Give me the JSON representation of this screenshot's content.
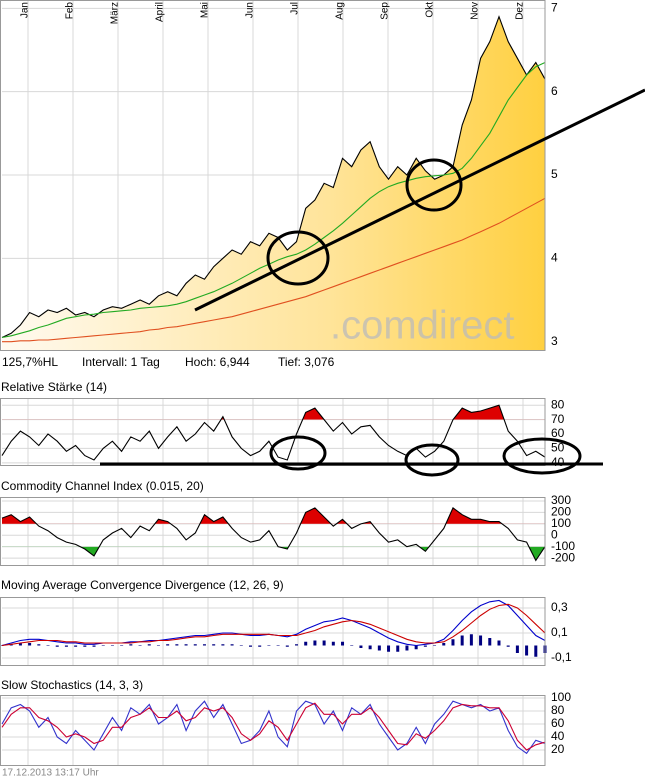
{
  "chart_data": [
    {
      "type": "line",
      "months": [
        "Jan",
        "Feb",
        "März",
        "April",
        "Mai",
        "Jun",
        "Jul",
        "Aug",
        "Sep",
        "Okt",
        "Nov",
        "Dez"
      ],
      "ylim": [
        2.9,
        7.1
      ],
      "yticks": [
        3,
        4,
        5,
        6,
        7
      ],
      "grid": true,
      "watermark": ".comdirect",
      "series": [
        {
          "style": "area",
          "color": "#000000",
          "values": [
            3.05,
            3.1,
            3.2,
            3.35,
            3.3,
            3.38,
            3.35,
            3.4,
            3.32,
            3.35,
            3.3,
            3.38,
            3.42,
            3.4,
            3.45,
            3.5,
            3.45,
            3.55,
            3.6,
            3.55,
            3.7,
            3.8,
            3.75,
            3.9,
            4.0,
            4.1,
            4.05,
            4.2,
            4.15,
            4.3,
            4.25,
            4.1,
            4.2,
            4.6,
            4.7,
            4.9,
            4.85,
            5.2,
            5.1,
            5.3,
            5.4,
            5.1,
            4.95,
            5.1,
            5.0,
            5.2,
            5.05,
            4.95,
            5.0,
            5.1,
            5.6,
            5.9,
            6.4,
            6.6,
            6.9,
            6.6,
            6.4,
            6.2,
            6.35,
            6.15
          ]
        },
        {
          "style": "line",
          "color": "#22aa22",
          "values": [
            3.05,
            3.07,
            3.1,
            3.13,
            3.17,
            3.2,
            3.24,
            3.28,
            3.3,
            3.32,
            3.33,
            3.35,
            3.36,
            3.37,
            3.38,
            3.4,
            3.41,
            3.42,
            3.43,
            3.45,
            3.48,
            3.52,
            3.56,
            3.6,
            3.65,
            3.7,
            3.76,
            3.82,
            3.88,
            3.93,
            3.98,
            4.02,
            4.05,
            4.1,
            4.17,
            4.25,
            4.33,
            4.42,
            4.52,
            4.62,
            4.72,
            4.8,
            4.86,
            4.9,
            4.93,
            4.96,
            4.98,
            4.99,
            5.0,
            5.02,
            5.08,
            5.2,
            5.35,
            5.5,
            5.7,
            5.9,
            6.05,
            6.2,
            6.3,
            6.35
          ]
        },
        {
          "style": "line",
          "color": "#e05020",
          "values": [
            3.0,
            3.0,
            3.01,
            3.01,
            3.02,
            3.02,
            3.03,
            3.04,
            3.05,
            3.06,
            3.07,
            3.08,
            3.09,
            3.1,
            3.11,
            3.12,
            3.14,
            3.15,
            3.17,
            3.18,
            3.2,
            3.22,
            3.24,
            3.26,
            3.28,
            3.3,
            3.33,
            3.36,
            3.39,
            3.42,
            3.45,
            3.48,
            3.51,
            3.54,
            3.58,
            3.62,
            3.66,
            3.7,
            3.74,
            3.78,
            3.82,
            3.86,
            3.9,
            3.94,
            3.98,
            4.02,
            4.06,
            4.1,
            4.14,
            4.18,
            4.22,
            4.27,
            4.32,
            4.37,
            4.42,
            4.48,
            4.54,
            4.6,
            4.66,
            4.72
          ]
        }
      ]
    },
    {
      "type": "line",
      "title": "Relative Stärke (14)",
      "ylim": [
        38.5,
        85
      ],
      "yticks": [
        40,
        50,
        60,
        70,
        80
      ],
      "grid": true,
      "fill_above": {
        "level": 70,
        "color": "#dd0000"
      },
      "series": [
        {
          "style": "line",
          "color": "#000000",
          "values": [
            45,
            55,
            62,
            58,
            52,
            60,
            55,
            48,
            52,
            45,
            42,
            50,
            55,
            48,
            58,
            55,
            62,
            50,
            58,
            65,
            55,
            60,
            68,
            62,
            72,
            58,
            50,
            45,
            48,
            55,
            44,
            42,
            60,
            75,
            78,
            70,
            62,
            68,
            60,
            65,
            66,
            58,
            52,
            48,
            45,
            50,
            44,
            48,
            55,
            70,
            78,
            75,
            76,
            78,
            80,
            62,
            55,
            45,
            48,
            44
          ]
        }
      ]
    },
    {
      "type": "line",
      "title": "Commodity Channel Index (0.015, 20)",
      "ylim": [
        -260,
        335
      ],
      "yticks": [
        -200,
        -100,
        0,
        100,
        200,
        300
      ],
      "grid": true,
      "fill_above": {
        "level": 100,
        "color": "#dd0000"
      },
      "fill_below": {
        "level": -100,
        "color": "#22aa22"
      },
      "series": [
        {
          "style": "line",
          "color": "#000000",
          "values": [
            150,
            180,
            120,
            160,
            80,
            40,
            -20,
            -60,
            -80,
            -120,
            -180,
            -40,
            20,
            60,
            -20,
            80,
            40,
            140,
            120,
            60,
            -40,
            20,
            180,
            120,
            160,
            60,
            -20,
            -60,
            -40,
            40,
            -100,
            -120,
            20,
            200,
            240,
            160,
            80,
            140,
            60,
            100,
            120,
            20,
            -60,
            -40,
            -100,
            -80,
            -140,
            -40,
            60,
            240,
            180,
            140,
            140,
            120,
            120,
            60,
            -40,
            -60,
            -220,
            -100
          ]
        }
      ]
    },
    {
      "type": "line",
      "title": "Moving Average Convergence Divergence (12, 26, 9)",
      "ylim": [
        -0.156,
        0.388
      ],
      "yticks": [
        {
          "value": -0.1,
          "label": "-0,1"
        },
        {
          "value": 0.1,
          "label": "0,1"
        },
        {
          "value": 0.3,
          "label": "0,3"
        }
      ],
      "grid": true,
      "series": [
        {
          "style": "bar",
          "color": "#000080",
          "values": [
            0,
            0.01,
            0.02,
            0.02,
            0.01,
            0,
            -0.01,
            -0.01,
            -0.01,
            -0.01,
            -0.01,
            0,
            0,
            0,
            0.01,
            0,
            0.01,
            0,
            0.01,
            0.01,
            0.01,
            0.01,
            0.01,
            0.01,
            0.01,
            0.01,
            0,
            -0.01,
            -0.01,
            0,
            0,
            -0.01,
            0.01,
            0.03,
            0.04,
            0.04,
            0.03,
            0.03,
            0,
            -0.02,
            -0.03,
            -0.04,
            -0.05,
            -0.05,
            -0.04,
            -0.03,
            -0.01,
            0,
            0.02,
            0.05,
            0.08,
            0.09,
            0.08,
            0.06,
            0.04,
            -0.01,
            -0.06,
            -0.08,
            -0.09,
            -0.06
          ]
        },
        {
          "style": "line",
          "color": "#0000cc",
          "values": [
            0.0,
            0.02,
            0.04,
            0.05,
            0.05,
            0.04,
            0.03,
            0.02,
            0.02,
            0.01,
            0.01,
            0.02,
            0.02,
            0.02,
            0.03,
            0.03,
            0.04,
            0.04,
            0.05,
            0.06,
            0.07,
            0.08,
            0.08,
            0.09,
            0.1,
            0.1,
            0.09,
            0.08,
            0.08,
            0.09,
            0.08,
            0.07,
            0.09,
            0.13,
            0.16,
            0.19,
            0.2,
            0.22,
            0.2,
            0.17,
            0.14,
            0.1,
            0.06,
            0.03,
            0.01,
            0.0,
            0.01,
            0.02,
            0.05,
            0.12,
            0.2,
            0.27,
            0.32,
            0.35,
            0.36,
            0.32,
            0.24,
            0.16,
            0.08,
            0.04
          ]
        },
        {
          "style": "line",
          "color": "#cc0000",
          "values": [
            0.0,
            0.01,
            0.02,
            0.03,
            0.04,
            0.04,
            0.04,
            0.03,
            0.03,
            0.02,
            0.02,
            0.02,
            0.02,
            0.02,
            0.02,
            0.03,
            0.03,
            0.04,
            0.04,
            0.05,
            0.06,
            0.07,
            0.07,
            0.08,
            0.09,
            0.09,
            0.09,
            0.09,
            0.09,
            0.09,
            0.08,
            0.08,
            0.08,
            0.1,
            0.12,
            0.15,
            0.17,
            0.19,
            0.2,
            0.19,
            0.17,
            0.14,
            0.11,
            0.08,
            0.05,
            0.03,
            0.02,
            0.02,
            0.03,
            0.07,
            0.12,
            0.18,
            0.24,
            0.29,
            0.32,
            0.33,
            0.3,
            0.24,
            0.17,
            0.1
          ]
        }
      ]
    },
    {
      "type": "line",
      "title": "Slow Stochastics (14, 3, 3)",
      "ylim": [
        -3,
        104.6
      ],
      "yticks": [
        20,
        40,
        60,
        80,
        100
      ],
      "grid": true,
      "series": [
        {
          "style": "line",
          "color": "#3333cc",
          "values": [
            60,
            85,
            90,
            80,
            55,
            70,
            40,
            30,
            50,
            35,
            20,
            45,
            70,
            50,
            85,
            75,
            90,
            60,
            70,
            90,
            50,
            80,
            95,
            70,
            90,
            60,
            30,
            35,
            50,
            80,
            40,
            25,
            80,
            95,
            90,
            60,
            80,
            50,
            85,
            75,
            90,
            60,
            40,
            20,
            30,
            55,
            30,
            60,
            75,
            95,
            90,
            85,
            90,
            80,
            85,
            50,
            25,
            15,
            35,
            30
          ]
        },
        {
          "style": "line",
          "color": "#cc0033",
          "values": [
            55,
            75,
            85,
            85,
            70,
            65,
            55,
            40,
            45,
            40,
            30,
            35,
            55,
            55,
            70,
            75,
            85,
            70,
            70,
            80,
            65,
            70,
            85,
            80,
            85,
            70,
            45,
            35,
            45,
            65,
            55,
            35,
            60,
            85,
            92,
            75,
            75,
            60,
            75,
            75,
            85,
            70,
            50,
            30,
            28,
            45,
            38,
            50,
            65,
            85,
            90,
            88,
            88,
            85,
            85,
            65,
            35,
            20,
            28,
            32
          ]
        }
      ]
    }
  ],
  "stats": [
    "125,7%HL",
    "Intervall: 1 Tag",
    "Hoch: 6,944",
    "Tief: 3,076"
  ],
  "footer": "17.12.2013 13:17 Uhr"
}
